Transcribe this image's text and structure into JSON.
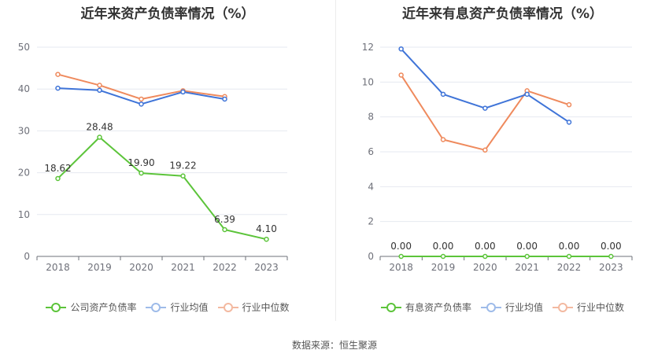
{
  "chart_data": [
    {
      "type": "line",
      "title": "近年来资产负债率情况（%）",
      "categories": [
        "2018",
        "2019",
        "2020",
        "2021",
        "2022",
        "2023"
      ],
      "ylim": [
        0,
        50
      ],
      "yticks": [
        0,
        10,
        20,
        30,
        40,
        50
      ],
      "grid": true,
      "legend_position": "bottom",
      "series": [
        {
          "name": "公司资产负债率",
          "color": "#5cc43a",
          "values": [
            18.62,
            28.48,
            19.9,
            19.22,
            6.39,
            4.1
          ],
          "labels": [
            "18.62",
            "28.48",
            "19.90",
            "19.22",
            "6.39",
            "4.10"
          ]
        },
        {
          "name": "行业均值",
          "color": "#3f74d8",
          "values": [
            40.2,
            39.7,
            36.4,
            39.3,
            37.6,
            null
          ]
        },
        {
          "name": "行业中位数",
          "color": "#ef8a5d",
          "values": [
            43.5,
            40.9,
            37.6,
            39.6,
            38.2,
            null
          ]
        }
      ]
    },
    {
      "type": "line",
      "title": "近年来有息资产负债率情况（%）",
      "categories": [
        "2018",
        "2019",
        "2020",
        "2021",
        "2022",
        "2023"
      ],
      "ylim": [
        0,
        12
      ],
      "yticks": [
        0,
        2,
        4,
        6,
        8,
        10,
        12
      ],
      "grid": true,
      "legend_position": "bottom",
      "series": [
        {
          "name": "有息资产负债率",
          "color": "#5cc43a",
          "values": [
            0,
            0,
            0,
            0,
            0,
            0
          ],
          "labels": [
            "0.00",
            "0.00",
            "0.00",
            "0.00",
            "0.00",
            "0.00"
          ]
        },
        {
          "name": "行业均值",
          "color": "#3f74d8",
          "values": [
            11.9,
            9.3,
            8.5,
            9.3,
            7.7,
            null
          ]
        },
        {
          "name": "行业中位数",
          "color": "#ef8a5d",
          "values": [
            10.4,
            6.7,
            6.1,
            9.5,
            8.7,
            null
          ]
        }
      ]
    }
  ],
  "legend_style": {
    "muted_series_colors": [
      "#9ebbe9",
      "#f3b9a0"
    ]
  },
  "footer": {
    "source": "数据来源：恒生聚源"
  }
}
